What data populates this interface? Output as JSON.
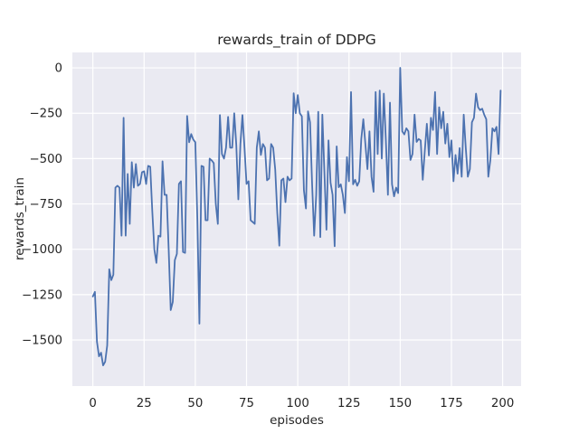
{
  "figure": {
    "title": "rewards_train of DDPG",
    "xlabel": "episodes",
    "ylabel": "rewards_train"
  },
  "chart_data": {
    "type": "line",
    "title": "rewards_train of DDPG",
    "xlabel": "episodes",
    "ylabel": "rewards_train",
    "legend": false,
    "grid": true,
    "x_is_episode_index": true,
    "xlim": [
      -10,
      209
    ],
    "ylim": [
      -1754,
      85
    ],
    "x_ticks": [
      0,
      25,
      50,
      75,
      100,
      125,
      150,
      175,
      200
    ],
    "x_tick_labels": [
      "0",
      "25",
      "50",
      "75",
      "100",
      "125",
      "150",
      "175",
      "200"
    ],
    "y_ticks": [
      0,
      -250,
      -500,
      -750,
      -1000,
      -1250,
      -1500
    ],
    "y_tick_labels": [
      "0",
      "−250",
      "−500",
      "−750",
      "−1000",
      "−1250",
      "−1500"
    ],
    "colors": {
      "line": "#4C72B0",
      "plot_background": "#EAEAF2",
      "gridline": "#FFFFFF",
      "text": "#262626",
      "figure_background": "#FFFFFF"
    },
    "series": [
      {
        "name": "rewards_train",
        "values": [
          -1260,
          -1235,
          -1510,
          -1590,
          -1570,
          -1640,
          -1620,
          -1530,
          -1110,
          -1170,
          -1140,
          -660,
          -650,
          -660,
          -925,
          -275,
          -925,
          -585,
          -860,
          -520,
          -660,
          -530,
          -650,
          -640,
          -575,
          -570,
          -640,
          -540,
          -545,
          -790,
          -1000,
          -1075,
          -925,
          -930,
          -515,
          -700,
          -700,
          -1000,
          -1335,
          -1290,
          -1060,
          -1025,
          -640,
          -625,
          -1015,
          -1020,
          -265,
          -410,
          -365,
          -395,
          -410,
          -835,
          -1410,
          -540,
          -545,
          -840,
          -840,
          -500,
          -510,
          -525,
          -750,
          -860,
          -260,
          -475,
          -500,
          -440,
          -270,
          -440,
          -440,
          -250,
          -425,
          -725,
          -420,
          -260,
          -440,
          -640,
          -625,
          -840,
          -850,
          -860,
          -440,
          -350,
          -480,
          -420,
          -440,
          -620,
          -610,
          -420,
          -440,
          -560,
          -800,
          -980,
          -620,
          -610,
          -740,
          -600,
          -620,
          -610,
          -140,
          -250,
          -150,
          -250,
          -267,
          -675,
          -775,
          -240,
          -300,
          -640,
          -925,
          -700,
          -242,
          -933,
          -258,
          -575,
          -892,
          -400,
          -633,
          -700,
          -983,
          -433,
          -658,
          -642,
          -700,
          -800,
          -492,
          -625,
          -133,
          -642,
          -617,
          -650,
          -625,
          -392,
          -283,
          -420,
          -558,
          -350,
          -600,
          -683,
          -133,
          -475,
          -125,
          -500,
          -142,
          -400,
          -700,
          -192,
          -642,
          -708,
          -660,
          -690,
          0,
          -350,
          -367,
          -333,
          -350,
          -508,
          -475,
          -258,
          -408,
          -392,
          -400,
          -617,
          -458,
          -308,
          -483,
          -275,
          -342,
          -133,
          -475,
          -217,
          -333,
          -242,
          -417,
          -308,
          -492,
          -400,
          -625,
          -480,
          -583,
          -442,
          -600,
          -258,
          -442,
          -600,
          -558,
          -300,
          -275,
          -142,
          -217,
          -233,
          -225,
          -258,
          -283,
          -600,
          -508,
          -333,
          -350,
          -325,
          -475,
          -125
        ]
      }
    ]
  }
}
